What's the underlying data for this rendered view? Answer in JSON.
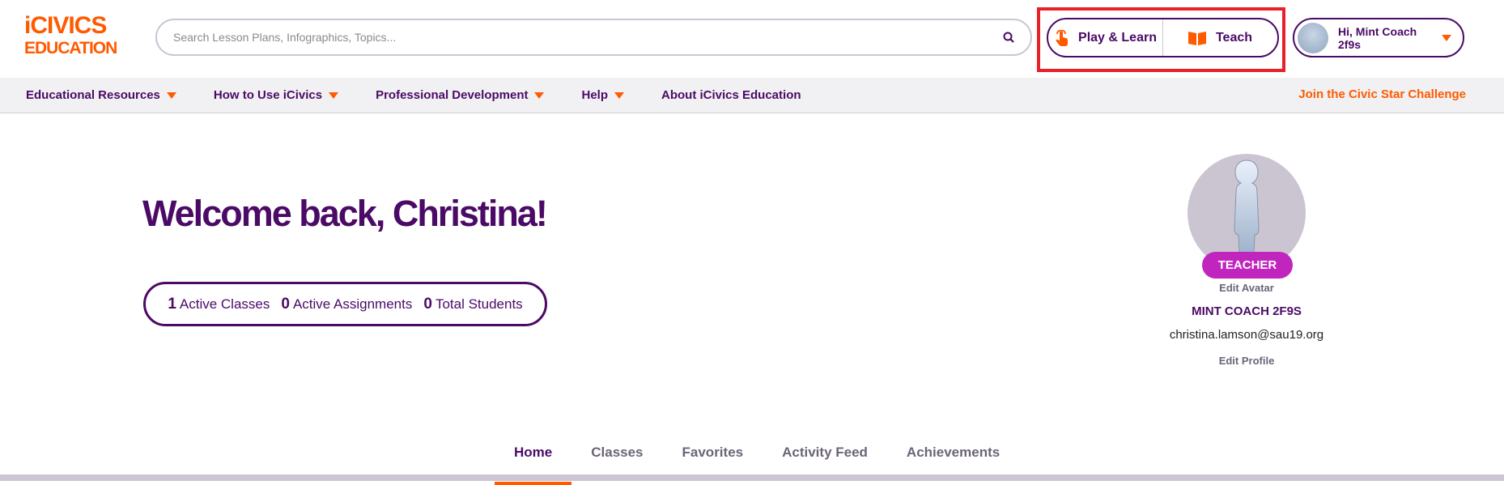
{
  "logo": {
    "line1": "iCIVICS",
    "line2": "EDUCATION"
  },
  "search": {
    "placeholder": "Search Lesson Plans, Infographics, Topics...",
    "icon": "search-icon"
  },
  "header": {
    "play_learn": "Play & Learn",
    "teach": "Teach",
    "user_greeting": "Hi, Mint Coach 2f9s"
  },
  "nav": {
    "items": [
      {
        "label": "Educational Resources"
      },
      {
        "label": "How to Use iCivics"
      },
      {
        "label": "Professional Development"
      },
      {
        "label": "Help"
      },
      {
        "label": "About iCivics Education"
      }
    ],
    "cta": "Join the Civic Star Challenge"
  },
  "main": {
    "welcome": "Welcome back, Christina!",
    "stats": [
      {
        "value": "1",
        "label": "Active Classes"
      },
      {
        "value": "0",
        "label": "Active Assignments"
      },
      {
        "value": "0",
        "label": "Total Students"
      }
    ]
  },
  "profile": {
    "role": "TEACHER",
    "edit_avatar": "Edit Avatar",
    "name": "MINT COACH 2F9S",
    "email": "christina.lamson@sau19.org",
    "edit_profile": "Edit Profile"
  },
  "tabs": [
    {
      "label": "Home",
      "active": true
    },
    {
      "label": "Classes"
    },
    {
      "label": "Favorites"
    },
    {
      "label": "Activity Feed"
    },
    {
      "label": "Achievements"
    }
  ],
  "colors": {
    "brand_purple": "#4a0a66",
    "accent_orange": "#ff5a00",
    "teacher_badge": "#c026be",
    "highlight_box": "#e8202a"
  }
}
